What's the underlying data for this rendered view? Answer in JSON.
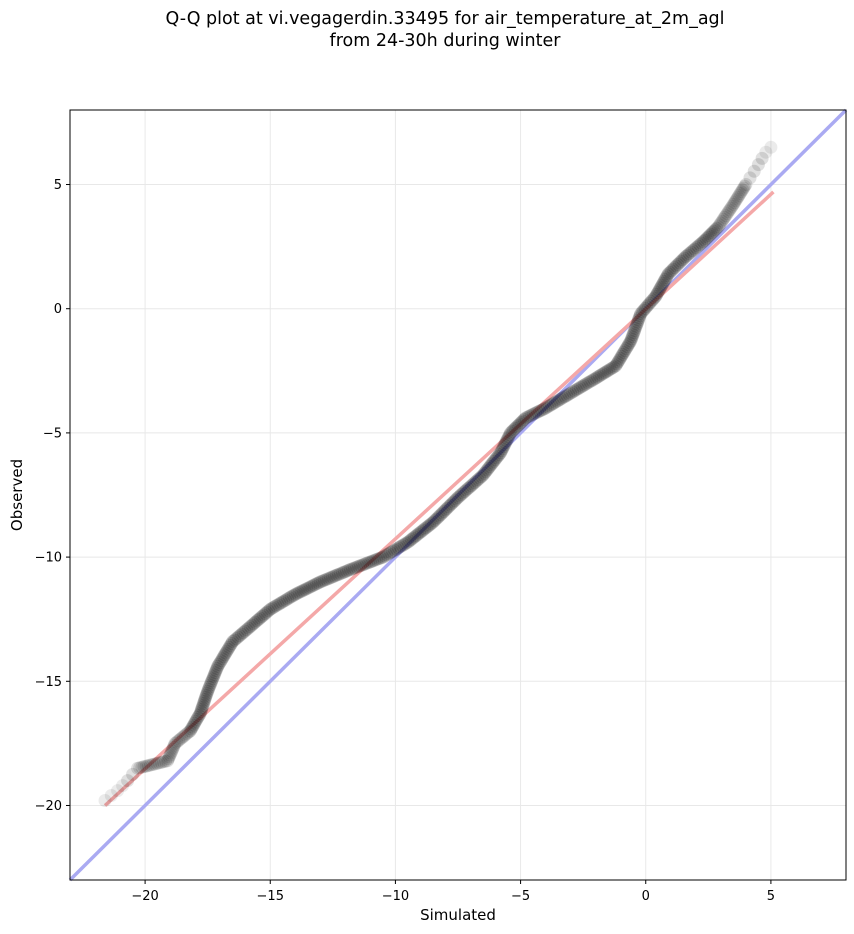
{
  "chart_data": {
    "type": "scatter",
    "title_lines": [
      "Q-Q plot at vi.vegagerdin.33495 for air_temperature_at_2m_agl",
      "from 24-30h during winter"
    ],
    "xlabel": "Simulated",
    "ylabel": "Observed",
    "xlim": [
      -23,
      8
    ],
    "ylim": [
      -23,
      8
    ],
    "xticks": [
      -20,
      -15,
      -10,
      -5,
      0,
      5
    ],
    "yticks": [
      -20,
      -15,
      -10,
      -5,
      0,
      5
    ],
    "xtick_labels": [
      "−20",
      "−15",
      "−10",
      "−5",
      "0",
      "5"
    ],
    "ytick_labels": [
      "−20",
      "−15",
      "−10",
      "−5",
      "0",
      "5"
    ],
    "grid": true,
    "colors": {
      "points": "#000000",
      "identity_line": "#aaaaf2",
      "fit_line": "#f4a8a8",
      "grid": "#e8e8e8"
    },
    "identity_line": {
      "x": [
        -23,
        8
      ],
      "y": [
        -23,
        8
      ]
    },
    "fit_line": {
      "x": [
        -21.6,
        5.1
      ],
      "y": [
        -20.0,
        4.7
      ]
    },
    "quantile_curve": [
      [
        -21.6,
        -19.8
      ],
      [
        -21.1,
        -19.4
      ],
      [
        -20.7,
        -19.0
      ],
      [
        -20.3,
        -18.5
      ],
      [
        -19.1,
        -18.2
      ],
      [
        -18.8,
        -17.5
      ],
      [
        -18.2,
        -17.0
      ],
      [
        -17.8,
        -16.3
      ],
      [
        -17.5,
        -15.4
      ],
      [
        -17.1,
        -14.4
      ],
      [
        -16.5,
        -13.4
      ],
      [
        -15.8,
        -12.8
      ],
      [
        -15.0,
        -12.1
      ],
      [
        -14.0,
        -11.5
      ],
      [
        -13.0,
        -11.0
      ],
      [
        -11.8,
        -10.5
      ],
      [
        -10.5,
        -10.0
      ],
      [
        -9.5,
        -9.4
      ],
      [
        -8.5,
        -8.6
      ],
      [
        -7.5,
        -7.6
      ],
      [
        -6.5,
        -6.7
      ],
      [
        -5.8,
        -5.8
      ],
      [
        -5.4,
        -5.0
      ],
      [
        -4.8,
        -4.4
      ],
      [
        -4.0,
        -4.0
      ],
      [
        -3.0,
        -3.4
      ],
      [
        -2.0,
        -2.8
      ],
      [
        -1.2,
        -2.3
      ],
      [
        -0.6,
        -1.3
      ],
      [
        -0.2,
        -0.2
      ],
      [
        0.4,
        0.5
      ],
      [
        0.9,
        1.4
      ],
      [
        1.6,
        2.1
      ],
      [
        2.3,
        2.7
      ],
      [
        2.9,
        3.3
      ],
      [
        3.5,
        4.2
      ],
      [
        4.0,
        5.0
      ],
      [
        4.5,
        5.8
      ],
      [
        4.8,
        6.3
      ],
      [
        5.0,
        6.5
      ]
    ]
  }
}
